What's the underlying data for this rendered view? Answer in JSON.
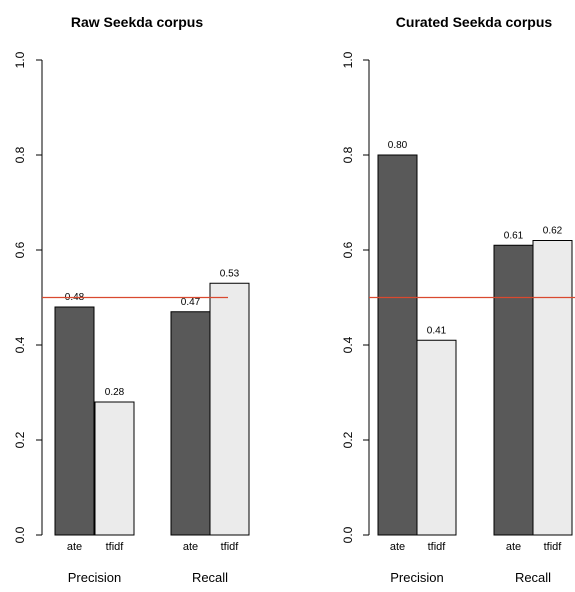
{
  "colors": {
    "ate": "#595959",
    "tfidf": "#ebebeb",
    "reference_line": "#d9492f",
    "axis": "#000000"
  },
  "chart_data": [
    {
      "type": "bar",
      "title": "Raw Seekda corpus",
      "groups": [
        "Precision",
        "Recall"
      ],
      "methods": [
        "ate",
        "tfidf"
      ],
      "series": [
        {
          "name": "ate",
          "values": [
            0.48,
            0.47
          ],
          "labels": [
            "0.48",
            "0.47"
          ]
        },
        {
          "name": "tfidf",
          "values": [
            0.28,
            0.53
          ],
          "labels": [
            "0.28",
            "0.53"
          ]
        }
      ],
      "ylim": [
        0,
        1
      ],
      "yticks": [
        0.0,
        0.2,
        0.4,
        0.6,
        0.8,
        1.0
      ],
      "ytick_labels": [
        "0.0",
        "0.2",
        "0.4",
        "0.6",
        "0.8",
        "1.0"
      ],
      "reference_line": 0.5,
      "grid": false
    },
    {
      "type": "bar",
      "title": "Curated Seekda corpus",
      "groups": [
        "Precision",
        "Recall"
      ],
      "methods": [
        "ate",
        "tfidf"
      ],
      "series": [
        {
          "name": "ate",
          "values": [
            0.8,
            0.61
          ],
          "labels": [
            "0.80",
            "0.61"
          ]
        },
        {
          "name": "tfidf",
          "values": [
            0.41,
            0.62
          ],
          "labels": [
            "0.41",
            "0.62"
          ]
        }
      ],
      "ylim": [
        0,
        1
      ],
      "yticks": [
        0.0,
        0.2,
        0.4,
        0.6,
        0.8,
        1.0
      ],
      "ytick_labels": [
        "0.0",
        "0.2",
        "0.4",
        "0.6",
        "0.8",
        "1.0"
      ],
      "reference_line": 0.5,
      "grid": false
    }
  ]
}
